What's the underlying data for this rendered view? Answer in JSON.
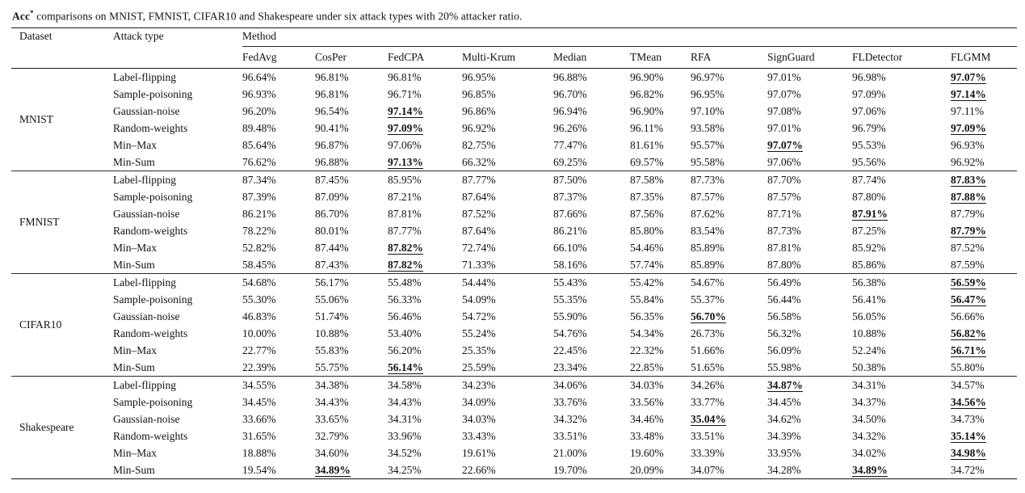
{
  "caption": {
    "prefix": "Acc",
    "superscript": "*",
    "rest": " comparisons on MNIST, FMNIST, CIFAR10 and Shakespeare under six attack types with 20% attacker ratio."
  },
  "table": {
    "col_dataset": "Dataset",
    "col_attack": "Attack type",
    "col_method_group": "Method",
    "methods": [
      "FedAvg",
      "CosPer",
      "FedCPA",
      "Multi-Krum",
      "Median",
      "TMean",
      "RFA",
      "SignGuard",
      "FLDetector",
      "FLGMM"
    ],
    "groups": [
      {
        "dataset": "MNIST",
        "rows": [
          {
            "attack": "Label-flipping",
            "values": [
              "96.64%",
              "96.81%",
              "96.81%",
              "96.95%",
              "96.88%",
              "96.90%",
              "96.97%",
              "97.01%",
              "96.98%",
              "97.07%"
            ],
            "best": [
              9
            ]
          },
          {
            "attack": "Sample-poisoning",
            "values": [
              "96.93%",
              "96.81%",
              "96.71%",
              "96.85%",
              "96.70%",
              "96.82%",
              "96.95%",
              "97.07%",
              "97.09%",
              "97.14%"
            ],
            "best": [
              9
            ]
          },
          {
            "attack": "Gaussian-noise",
            "values": [
              "96.20%",
              "96.54%",
              "97.14%",
              "96.86%",
              "96.94%",
              "96.90%",
              "97.10%",
              "97.08%",
              "97.06%",
              "97.11%"
            ],
            "best": [
              2
            ]
          },
          {
            "attack": "Random-weights",
            "values": [
              "89.48%",
              "90.41%",
              "97.09%",
              "96.92%",
              "96.26%",
              "96.11%",
              "93.58%",
              "97.01%",
              "96.79%",
              "97.09%"
            ],
            "best": [
              2,
              9
            ]
          },
          {
            "attack": "Min–Max",
            "values": [
              "85.64%",
              "96.87%",
              "97.06%",
              "82.75%",
              "77.47%",
              "81.61%",
              "95.57%",
              "97.07%",
              "95.53%",
              "96.93%"
            ],
            "best": [
              7
            ]
          },
          {
            "attack": "Min-Sum",
            "values": [
              "76.62%",
              "96.88%",
              "97.13%",
              "66.32%",
              "69.25%",
              "69.57%",
              "95.58%",
              "97.06%",
              "95.56%",
              "96.92%"
            ],
            "best": [
              2
            ]
          }
        ]
      },
      {
        "dataset": "FMNIST",
        "rows": [
          {
            "attack": "Label-flipping",
            "values": [
              "87.34%",
              "87.45%",
              "85.95%",
              "87.77%",
              "87.50%",
              "87.58%",
              "87.73%",
              "87.70%",
              "87.74%",
              "87.83%"
            ],
            "best": [
              9
            ]
          },
          {
            "attack": "Sample-poisoning",
            "values": [
              "87.39%",
              "87.09%",
              "87.21%",
              "87.64%",
              "87.37%",
              "87.35%",
              "87.57%",
              "87.57%",
              "87.80%",
              "87.88%"
            ],
            "best": [
              9
            ]
          },
          {
            "attack": "Gaussian-noise",
            "values": [
              "86.21%",
              "86.70%",
              "87.81%",
              "87.52%",
              "87.66%",
              "87.56%",
              "87.62%",
              "87.71%",
              "87.91%",
              "87.79%"
            ],
            "best": [
              8
            ]
          },
          {
            "attack": "Random-weights",
            "values": [
              "78.22%",
              "80.01%",
              "87.77%",
              "87.64%",
              "86.21%",
              "85.80%",
              "83.54%",
              "87.73%",
              "87.25%",
              "87.79%"
            ],
            "best": [
              9
            ]
          },
          {
            "attack": "Min–Max",
            "values": [
              "52.82%",
              "87.44%",
              "87.82%",
              "72.74%",
              "66.10%",
              "54.46%",
              "85.89%",
              "87.81%",
              "85.92%",
              "87.52%"
            ],
            "best": [
              2
            ]
          },
          {
            "attack": "Min-Sum",
            "values": [
              "58.45%",
              "87.43%",
              "87.82%",
              "71.33%",
              "58.16%",
              "57.74%",
              "85.89%",
              "87.80%",
              "85.86%",
              "87.59%"
            ],
            "best": [
              2
            ]
          }
        ]
      },
      {
        "dataset": "CIFAR10",
        "rows": [
          {
            "attack": "Label-flipping",
            "values": [
              "54.68%",
              "56.17%",
              "55.48%",
              "54.44%",
              "55.43%",
              "55.42%",
              "54.67%",
              "56.49%",
              "56.38%",
              "56.59%"
            ],
            "best": [
              9
            ]
          },
          {
            "attack": "Sample-poisoning",
            "values": [
              "55.30%",
              "55.06%",
              "56.33%",
              "54.09%",
              "55.35%",
              "55.84%",
              "55.37%",
              "56.44%",
              "56.41%",
              "56.47%"
            ],
            "best": [
              9
            ]
          },
          {
            "attack": "Gaussian-noise",
            "values": [
              "46.83%",
              "51.74%",
              "56.46%",
              "54.72%",
              "55.90%",
              "56.35%",
              "56.70%",
              "56.58%",
              "56.05%",
              "56.66%"
            ],
            "best": [
              6
            ]
          },
          {
            "attack": "Random-weights",
            "values": [
              "10.00%",
              "10.88%",
              "53.40%",
              "55.24%",
              "54.76%",
              "54.34%",
              "26.73%",
              "56.32%",
              "10.88%",
              "56.82%"
            ],
            "best": [
              9
            ]
          },
          {
            "attack": "Min–Max",
            "values": [
              "22.77%",
              "55.83%",
              "56.20%",
              "25.35%",
              "22.45%",
              "22.32%",
              "51.66%",
              "56.09%",
              "52.24%",
              "56.71%"
            ],
            "best": [
              9
            ]
          },
          {
            "attack": "Min-Sum",
            "values": [
              "22.39%",
              "55.75%",
              "56.14%",
              "25.59%",
              "23.34%",
              "22.85%",
              "51.65%",
              "55.98%",
              "50.38%",
              "55.80%"
            ],
            "best": [
              2
            ]
          }
        ]
      },
      {
        "dataset": "Shakespeare",
        "rows": [
          {
            "attack": "Label-flipping",
            "values": [
              "34.55%",
              "34.38%",
              "34.58%",
              "34.23%",
              "34.06%",
              "34.03%",
              "34.26%",
              "34.87%",
              "34.31%",
              "34.57%"
            ],
            "best": [
              7
            ]
          },
          {
            "attack": "Sample-poisoning",
            "values": [
              "34.45%",
              "34.43%",
              "34.43%",
              "34.09%",
              "33.76%",
              "33.56%",
              "33.77%",
              "34.45%",
              "34.37%",
              "34.56%"
            ],
            "best": [
              9
            ]
          },
          {
            "attack": "Gaussian-noise",
            "values": [
              "33.66%",
              "33.65%",
              "34.31%",
              "34.03%",
              "34.32%",
              "34.46%",
              "35.04%",
              "34.62%",
              "34.50%",
              "34.73%"
            ],
            "best": [
              6
            ]
          },
          {
            "attack": "Random-weights",
            "values": [
              "31.65%",
              "32.79%",
              "33.96%",
              "33.43%",
              "33.51%",
              "33.48%",
              "33.51%",
              "34.39%",
              "34.32%",
              "35.14%"
            ],
            "best": [
              9
            ]
          },
          {
            "attack": "Min–Max",
            "values": [
              "18.88%",
              "34.60%",
              "34.52%",
              "19.61%",
              "21.00%",
              "19.60%",
              "33.39%",
              "33.95%",
              "34.02%",
              "34.98%"
            ],
            "best": [
              9
            ]
          },
          {
            "attack": "Min-Sum",
            "values": [
              "19.54%",
              "34.89%",
              "34.25%",
              "22.66%",
              "19.70%",
              "20.09%",
              "34.07%",
              "34.28%",
              "34.89%",
              "34.72%"
            ],
            "best": [
              1,
              8
            ]
          }
        ]
      }
    ]
  },
  "colors": {
    "background": "#ffffff",
    "text": "#121212",
    "rule": "#161616"
  }
}
